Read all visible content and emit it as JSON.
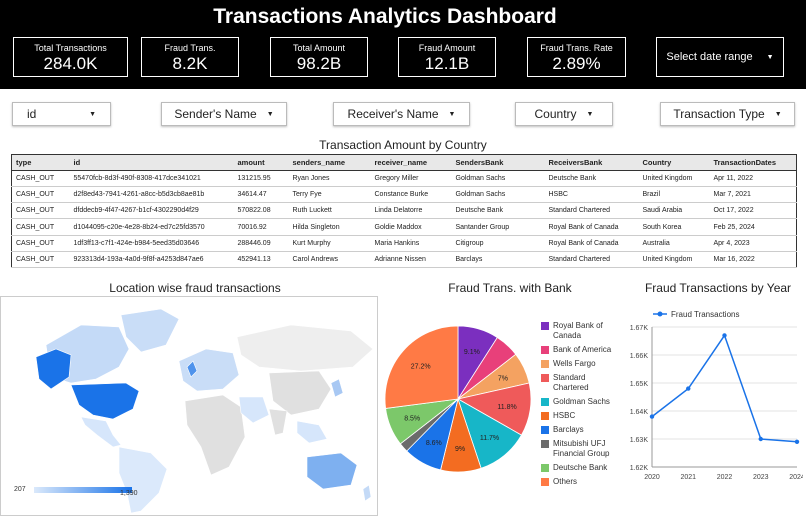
{
  "header": {
    "title": "Transactions Analytics Dashboard",
    "kpis": [
      {
        "label": "Total Transactions",
        "value": "284.0K"
      },
      {
        "label": "Fraud Trans.",
        "value": "8.2K"
      },
      {
        "label": "Total Amount",
        "value": "98.2B"
      },
      {
        "label": "Fraud Amount",
        "value": "12.1B"
      },
      {
        "label": "Fraud Trans. Rate",
        "value": "2.89%"
      }
    ],
    "date_range_label": "Select date range"
  },
  "filters": [
    "id",
    "Sender's Name",
    "Receiver's Name",
    "Country",
    "Transaction Type"
  ],
  "table": {
    "title": "Transaction Amount by Country",
    "columns": [
      "type",
      "id",
      "amount",
      "senders_name",
      "receiver_name",
      "SendersBank",
      "ReceiversBank",
      "Country",
      "TransactionDates"
    ],
    "rows": [
      [
        "CASH_OUT",
        "55470fcb-8d3f-490f-8308-417dce341021",
        "131215.95",
        "Ryan Jones",
        "Gregory Miller",
        "Goldman Sachs",
        "Deutsche Bank",
        "United Kingdom",
        "Apr 11, 2022"
      ],
      [
        "CASH_OUT",
        "d2f8ed43-7941-4261-a8cc-b5d3cb8ae81b",
        "34614.47",
        "Terry Fye",
        "Constance Burke",
        "Goldman Sachs",
        "HSBC",
        "Brazil",
        "Mar 7, 2021"
      ],
      [
        "CASH_OUT",
        "dfddecb9-4f47-4267-b1cf-4302290d4f29",
        "570822.08",
        "Ruth Luckett",
        "Linda Delatorre",
        "Deutsche Bank",
        "Standard Chartered",
        "Saudi Arabia",
        "Oct 17, 2022"
      ],
      [
        "CASH_OUT",
        "d1044095-c20e-4e28-8b24-ed7c25fd3570",
        "70016.92",
        "Hilda Singleton",
        "Goldie Maddox",
        "Santander Group",
        "Royal Bank of Canada",
        "South Korea",
        "Feb 25, 2024"
      ],
      [
        "CASH_OUT",
        "1df3ff13-c7f1-424e-b984-5eed35d03646",
        "288446.09",
        "Kurt Murphy",
        "Maria Hankins",
        "Citigroup",
        "Royal Bank of Canada",
        "Australia",
        "Apr 4, 2023"
      ],
      [
        "CASH_OUT",
        "923313d4-193a-4a0d-9f8f-a4253d847ae6",
        "452941.13",
        "Carol Andrews",
        "Adrianne Nissen",
        "Barclays",
        "Standard Chartered",
        "United Kingdom",
        "Mar 16, 2022"
      ]
    ]
  },
  "map": {
    "title": "Location wise fraud transactions",
    "legend_min": "207",
    "legend_max": "1,390",
    "colors": {
      "low": "#dbe9fb",
      "high": "#1a73e8",
      "land": "#e0e0e0"
    }
  },
  "chart_data": [
    {
      "type": "pie",
      "title": "Fraud Trans. with Bank",
      "labels": [
        "Royal Bank of Canada",
        "Bank of America",
        "Wells Fargo",
        "Standard Chartered",
        "Goldman Sachs",
        "HSBC",
        "Barclays",
        "Mitsubishi UFJ Financial Group",
        "Deutsche Bank",
        "Others"
      ],
      "values": [
        9.1,
        5.5,
        7.0,
        11.8,
        11.7,
        9.0,
        8.6,
        2.1,
        8.5,
        27.2
      ],
      "printed_labels": [
        "9.1%",
        "",
        "7%",
        "11.8%",
        "11.7%",
        "9%",
        "8.6%",
        "",
        "8.5%",
        "27.2%"
      ],
      "colors": [
        "#7b2fbf",
        "#e8407a",
        "#f4a261",
        "#ef5a5a",
        "#17b6c8",
        "#f36c21",
        "#1a73e8",
        "#6b6b6b",
        "#7cc86a",
        "#ff7a45"
      ]
    },
    {
      "type": "line",
      "title": "Fraud Transactions by Year",
      "x": [
        2020,
        2021,
        2022,
        2023,
        2024
      ],
      "series": [
        {
          "name": "Fraud Transactions",
          "values": [
            1638,
            1648,
            1667,
            1630,
            1629
          ],
          "color": "#1a73e8"
        }
      ],
      "ylim": [
        1620,
        1670
      ],
      "yticks": [
        "1.62K",
        "1.63K",
        "1.64K",
        "1.65K",
        "1.66K",
        "1.67K"
      ],
      "grid": true,
      "legend": "top"
    }
  ]
}
